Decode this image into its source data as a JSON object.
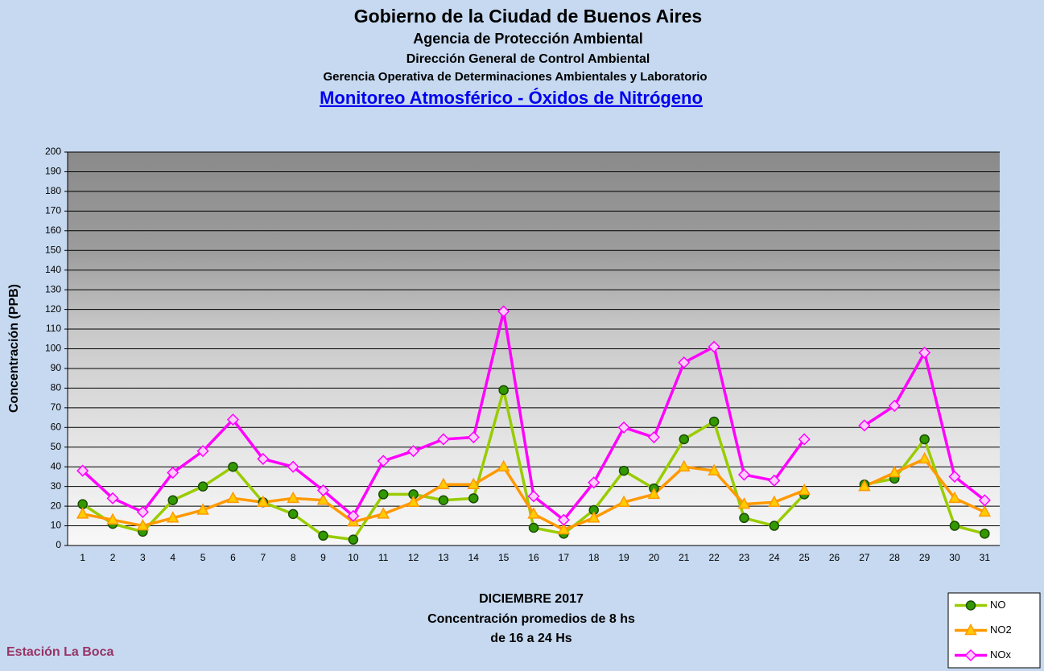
{
  "chart_data": {
    "type": "line",
    "title": "Gobierno de la Ciudad de Buenos Aires",
    "subtitles": [
      "Agencia de Protección Ambiental",
      "Dirección General de Control Ambiental",
      "Gerencia Operativa de  Determinaciones Ambientales y Laboratorio"
    ],
    "heading": "Monitoreo Atmosférico - Óxidos de Nitrógeno",
    "ylabel": "Concentración  (PPB)",
    "xlabel": "DICIEMBRE 2017",
    "notes": [
      "Concentración promedios de 8 hs",
      "de 16 a 24 Hs"
    ],
    "station": "Estación La Boca",
    "categories": [
      "1",
      "2",
      "3",
      "4",
      "5",
      "6",
      "7",
      "8",
      "9",
      "10",
      "11",
      "12",
      "13",
      "14",
      "15",
      "16",
      "17",
      "18",
      "19",
      "20",
      "21",
      "22",
      "23",
      "24",
      "25",
      "26",
      "27",
      "28",
      "29",
      "30",
      "31"
    ],
    "series": [
      {
        "name": "NO",
        "color": "#99cc00",
        "marker": "circle",
        "values": [
          21,
          11,
          7,
          23,
          30,
          40,
          22,
          16,
          5,
          3,
          26,
          26,
          23,
          24,
          79,
          9,
          6,
          18,
          38,
          29,
          54,
          63,
          14,
          10,
          26,
          null,
          31,
          34,
          54,
          10,
          6
        ]
      },
      {
        "name": "NO2",
        "color": "#ff9900",
        "marker": "triangle",
        "values": [
          16,
          13,
          10,
          14,
          18,
          24,
          22,
          24,
          23,
          12,
          16,
          22,
          31,
          31,
          40,
          16,
          8,
          14,
          22,
          26,
          40,
          38,
          21,
          22,
          28,
          null,
          30,
          37,
          44,
          24,
          17
        ]
      },
      {
        "name": "NOx",
        "color": "#ff00ff",
        "marker": "diamond",
        "values": [
          38,
          24,
          17,
          37,
          48,
          64,
          44,
          40,
          28,
          15,
          43,
          48,
          54,
          55,
          119,
          25,
          13,
          32,
          60,
          55,
          93,
          101,
          36,
          33,
          54,
          null,
          61,
          71,
          98,
          35,
          23
        ]
      }
    ],
    "ylim": [
      0,
      200
    ],
    "yticks": [
      0,
      10,
      20,
      30,
      40,
      50,
      60,
      70,
      80,
      90,
      100,
      110,
      120,
      130,
      140,
      150,
      160,
      170,
      180,
      190,
      200
    ],
    "grid": true,
    "legend": "bottom-right"
  }
}
